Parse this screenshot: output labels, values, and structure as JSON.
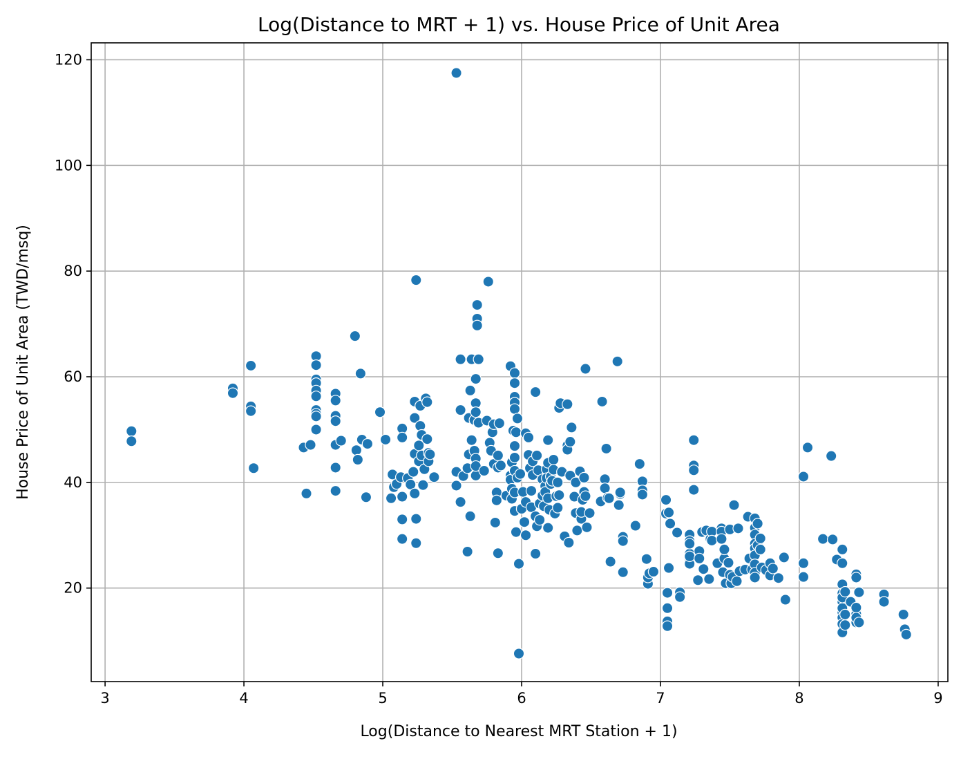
{
  "chart_data": {
    "type": "scatter",
    "title": "Log(Distance to MRT + 1) vs. House Price of Unit Area",
    "xlabel": "Log(Distance to Nearest MRT Station + 1)",
    "ylabel": "House Price of Unit Area (TWD/msq)",
    "xlim": [
      2.9,
      9.07
    ],
    "ylim": [
      2.3,
      123.2
    ],
    "xticks": [
      3,
      4,
      5,
      6,
      7,
      8,
      9
    ],
    "yticks": [
      20,
      40,
      60,
      80,
      100,
      120
    ],
    "xtick_labels": [
      "3",
      "4",
      "5",
      "6",
      "7",
      "8",
      "9"
    ],
    "ytick_labels": [
      "20",
      "40",
      "60",
      "80",
      "100",
      "120"
    ],
    "grid": true,
    "marker_color": "#1f77b4",
    "grid_color": "#b0b0b0",
    "points": [
      [
        3.19,
        49.7
      ],
      [
        3.19,
        47.8
      ],
      [
        3.92,
        57.8
      ],
      [
        3.92,
        56.9
      ],
      [
        4.05,
        62.1
      ],
      [
        4.05,
        54.4
      ],
      [
        4.05,
        53.5
      ],
      [
        4.07,
        42.7
      ],
      [
        4.43,
        46.6
      ],
      [
        4.45,
        37.9
      ],
      [
        4.48,
        47.1
      ],
      [
        4.52,
        63.9
      ],
      [
        4.52,
        62.2
      ],
      [
        4.52,
        59.5
      ],
      [
        4.52,
        58.8
      ],
      [
        4.52,
        57.4
      ],
      [
        4.52,
        56.3
      ],
      [
        4.52,
        53.7
      ],
      [
        4.52,
        53.0
      ],
      [
        4.52,
        52.5
      ],
      [
        4.52,
        50.0
      ],
      [
        4.66,
        56.8
      ],
      [
        4.66,
        55.5
      ],
      [
        4.66,
        52.6
      ],
      [
        4.66,
        51.6
      ],
      [
        4.66,
        47.1
      ],
      [
        4.66,
        42.8
      ],
      [
        4.66,
        38.4
      ],
      [
        4.7,
        47.9
      ],
      [
        4.8,
        67.7
      ],
      [
        4.81,
        46.1
      ],
      [
        4.82,
        44.3
      ],
      [
        4.84,
        60.6
      ],
      [
        4.85,
        48.1
      ],
      [
        4.88,
        37.2
      ],
      [
        4.89,
        47.3
      ],
      [
        4.98,
        53.3
      ],
      [
        5.02,
        48.1
      ],
      [
        5.06,
        37.0
      ],
      [
        5.07,
        41.5
      ],
      [
        5.08,
        39.1
      ],
      [
        5.1,
        39.7
      ],
      [
        5.13,
        41.0
      ],
      [
        5.14,
        50.2
      ],
      [
        5.14,
        48.5
      ],
      [
        5.14,
        37.3
      ],
      [
        5.14,
        33.0
      ],
      [
        5.14,
        29.3
      ],
      [
        5.18,
        40.8
      ],
      [
        5.2,
        39.6
      ],
      [
        5.22,
        42.0
      ],
      [
        5.23,
        55.3
      ],
      [
        5.23,
        52.2
      ],
      [
        5.23,
        45.4
      ],
      [
        5.23,
        37.9
      ],
      [
        5.24,
        78.3
      ],
      [
        5.24,
        33.1
      ],
      [
        5.24,
        28.5
      ],
      [
        5.26,
        47.0
      ],
      [
        5.26,
        44.0
      ],
      [
        5.27,
        50.7
      ],
      [
        5.27,
        54.5
      ],
      [
        5.28,
        49.0
      ],
      [
        5.28,
        45.1
      ],
      [
        5.29,
        39.5
      ],
      [
        5.3,
        42.5
      ],
      [
        5.31,
        55.9
      ],
      [
        5.32,
        48.2
      ],
      [
        5.32,
        55.2
      ],
      [
        5.33,
        45.6
      ],
      [
        5.33,
        44.0
      ],
      [
        5.34,
        45.3
      ],
      [
        5.37,
        41.0
      ],
      [
        5.53,
        117.5
      ],
      [
        5.53,
        42.0
      ],
      [
        5.53,
        39.4
      ],
      [
        5.56,
        63.3
      ],
      [
        5.56,
        53.7
      ],
      [
        5.56,
        36.3
      ],
      [
        5.58,
        41.2
      ],
      [
        5.61,
        26.9
      ],
      [
        5.61,
        42.7
      ],
      [
        5.62,
        45.3
      ],
      [
        5.62,
        52.2
      ],
      [
        5.63,
        33.6
      ],
      [
        5.63,
        57.4
      ],
      [
        5.64,
        63.3
      ],
      [
        5.64,
        48.0
      ],
      [
        5.66,
        51.8
      ],
      [
        5.66,
        46.0
      ],
      [
        5.67,
        59.6
      ],
      [
        5.67,
        55.0
      ],
      [
        5.67,
        53.3
      ],
      [
        5.67,
        44.5
      ],
      [
        5.67,
        41.3
      ],
      [
        5.67,
        43.1
      ],
      [
        5.68,
        73.6
      ],
      [
        5.68,
        71.0
      ],
      [
        5.68,
        69.7
      ],
      [
        5.69,
        63.3
      ],
      [
        5.69,
        51.3
      ],
      [
        5.73,
        42.2
      ],
      [
        5.75,
        51.7
      ],
      [
        5.76,
        78.0
      ],
      [
        5.77,
        47.5
      ],
      [
        5.78,
        46.0
      ],
      [
        5.79,
        49.5
      ],
      [
        5.8,
        51.0
      ],
      [
        5.8,
        43.5
      ],
      [
        5.81,
        32.4
      ],
      [
        5.82,
        38.1
      ],
      [
        5.82,
        36.6
      ],
      [
        5.83,
        26.6
      ],
      [
        5.83,
        45.1
      ],
      [
        5.83,
        42.8
      ],
      [
        5.84,
        51.2
      ],
      [
        5.85,
        43.2
      ],
      [
        5.89,
        37.5
      ],
      [
        5.92,
        62.0
      ],
      [
        5.92,
        41.3
      ],
      [
        5.92,
        40.5
      ],
      [
        5.93,
        38.8
      ],
      [
        5.93,
        36.9
      ],
      [
        5.93,
        43.8
      ],
      [
        5.94,
        49.8
      ],
      [
        5.95,
        60.7
      ],
      [
        5.95,
        58.8
      ],
      [
        5.95,
        56.2
      ],
      [
        5.95,
        55.1
      ],
      [
        5.95,
        53.9
      ],
      [
        5.95,
        46.9
      ],
      [
        5.95,
        44.7
      ],
      [
        5.95,
        42.2
      ],
      [
        5.95,
        38.1
      ],
      [
        5.95,
        34.6
      ],
      [
        5.96,
        30.6
      ],
      [
        5.96,
        49.5
      ],
      [
        5.97,
        52.1
      ],
      [
        5.97,
        40.9
      ],
      [
        5.98,
        24.6
      ],
      [
        5.98,
        7.6
      ],
      [
        5.99,
        41.6
      ],
      [
        6.0,
        35.0
      ],
      [
        6.01,
        38.2
      ],
      [
        6.02,
        32.5
      ],
      [
        6.03,
        30.0
      ],
      [
        6.03,
        36.3
      ],
      [
        6.03,
        49.3
      ],
      [
        6.05,
        48.5
      ],
      [
        6.05,
        45.2
      ],
      [
        6.06,
        42.7
      ],
      [
        6.07,
        35.3
      ],
      [
        6.07,
        38.4
      ],
      [
        6.08,
        41.4
      ],
      [
        6.08,
        44.0
      ],
      [
        6.1,
        57.1
      ],
      [
        6.1,
        33.6
      ],
      [
        6.1,
        26.5
      ],
      [
        6.11,
        31.7
      ],
      [
        6.11,
        45.1
      ],
      [
        6.12,
        42.3
      ],
      [
        6.13,
        36.0
      ],
      [
        6.13,
        32.9
      ],
      [
        6.15,
        40.6
      ],
      [
        6.15,
        37.5
      ],
      [
        6.16,
        35.5
      ],
      [
        6.17,
        39.3
      ],
      [
        6.17,
        38.2
      ],
      [
        6.18,
        42.5
      ],
      [
        6.18,
        40.8
      ],
      [
        6.19,
        48.0
      ],
      [
        6.19,
        43.7
      ],
      [
        6.19,
        37.0
      ],
      [
        6.19,
        31.4
      ],
      [
        6.2,
        34.8
      ],
      [
        6.21,
        41.1
      ],
      [
        6.21,
        39.7
      ],
      [
        6.22,
        40.3
      ],
      [
        6.23,
        44.3
      ],
      [
        6.23,
        42.4
      ],
      [
        6.24,
        34.1
      ],
      [
        6.25,
        37.4
      ],
      [
        6.26,
        35.2
      ],
      [
        6.26,
        40.0
      ],
      [
        6.27,
        37.6
      ],
      [
        6.27,
        54.1
      ],
      [
        6.28,
        55.0
      ],
      [
        6.29,
        42.0
      ],
      [
        6.31,
        29.8
      ],
      [
        6.33,
        54.8
      ],
      [
        6.33,
        47.0
      ],
      [
        6.33,
        46.2
      ],
      [
        6.34,
        28.6
      ],
      [
        6.35,
        41.3
      ],
      [
        6.35,
        47.7
      ],
      [
        6.36,
        50.4
      ],
      [
        6.38,
        37.3
      ],
      [
        6.39,
        40.0
      ],
      [
        6.39,
        34.2
      ],
      [
        6.4,
        30.9
      ],
      [
        6.42,
        42.1
      ],
      [
        6.43,
        33.1
      ],
      [
        6.43,
        34.4
      ],
      [
        6.44,
        36.7
      ],
      [
        6.45,
        40.9
      ],
      [
        6.45,
        38.2
      ],
      [
        6.46,
        61.5
      ],
      [
        6.46,
        37.4
      ],
      [
        6.47,
        31.5
      ],
      [
        6.49,
        34.2
      ],
      [
        6.57,
        36.4
      ],
      [
        6.58,
        55.3
      ],
      [
        6.6,
        40.6
      ],
      [
        6.6,
        38.9
      ],
      [
        6.61,
        46.4
      ],
      [
        6.62,
        37.1
      ],
      [
        6.63,
        37.0
      ],
      [
        6.64,
        25.0
      ],
      [
        6.69,
        62.9
      ],
      [
        6.7,
        35.7
      ],
      [
        6.71,
        37.8
      ],
      [
        6.71,
        38.1
      ],
      [
        6.73,
        29.7
      ],
      [
        6.73,
        28.9
      ],
      [
        6.73,
        23.0
      ],
      [
        6.82,
        31.8
      ],
      [
        6.85,
        43.5
      ],
      [
        6.87,
        40.2
      ],
      [
        6.87,
        38.5
      ],
      [
        6.87,
        37.7
      ],
      [
        6.9,
        25.5
      ],
      [
        6.91,
        20.8
      ],
      [
        6.91,
        22.0
      ],
      [
        6.92,
        22.8
      ],
      [
        6.95,
        23.1
      ],
      [
        7.04,
        36.7
      ],
      [
        7.04,
        34.1
      ],
      [
        7.05,
        19.1
      ],
      [
        7.05,
        16.2
      ],
      [
        7.05,
        13.7
      ],
      [
        7.05,
        12.8
      ],
      [
        7.06,
        34.3
      ],
      [
        7.06,
        23.8
      ],
      [
        7.07,
        32.2
      ],
      [
        7.12,
        30.5
      ],
      [
        7.14,
        19.2
      ],
      [
        7.14,
        18.3
      ],
      [
        7.21,
        30.1
      ],
      [
        7.21,
        28.9
      ],
      [
        7.21,
        26.5
      ],
      [
        7.21,
        25.5
      ],
      [
        7.21,
        24.6
      ],
      [
        7.21,
        26.0
      ],
      [
        7.21,
        28.4
      ],
      [
        7.24,
        48.0
      ],
      [
        7.24,
        43.2
      ],
      [
        7.24,
        42.3
      ],
      [
        7.24,
        38.6
      ],
      [
        7.27,
        21.5
      ],
      [
        7.28,
        27.0
      ],
      [
        7.28,
        25.6
      ],
      [
        7.3,
        30.6
      ],
      [
        7.31,
        23.6
      ],
      [
        7.33,
        30.9
      ],
      [
        7.35,
        21.7
      ],
      [
        7.36,
        29.3
      ],
      [
        7.37,
        30.7
      ],
      [
        7.37,
        29.0
      ],
      [
        7.41,
        24.7
      ],
      [
        7.44,
        31.3
      ],
      [
        7.44,
        30.7
      ],
      [
        7.44,
        29.3
      ],
      [
        7.45,
        23.0
      ],
      [
        7.46,
        25.6
      ],
      [
        7.46,
        27.3
      ],
      [
        7.47,
        20.9
      ],
      [
        7.49,
        24.8
      ],
      [
        7.5,
        31.1
      ],
      [
        7.5,
        22.5
      ],
      [
        7.51,
        20.9
      ],
      [
        7.52,
        22.1
      ],
      [
        7.53,
        35.7
      ],
      [
        7.55,
        21.3
      ],
      [
        7.56,
        31.3
      ],
      [
        7.57,
        23.2
      ],
      [
        7.61,
        23.5
      ],
      [
        7.63,
        33.5
      ],
      [
        7.64,
        25.6
      ],
      [
        7.66,
        23.5
      ],
      [
        7.68,
        33.2
      ],
      [
        7.68,
        31.4
      ],
      [
        7.68,
        30.1
      ],
      [
        7.68,
        28.4
      ],
      [
        7.68,
        27.5
      ],
      [
        7.68,
        26.2
      ],
      [
        7.68,
        24.5
      ],
      [
        7.68,
        22.9
      ],
      [
        7.68,
        22.0
      ],
      [
        7.7,
        32.2
      ],
      [
        7.7,
        28.1
      ],
      [
        7.72,
        29.4
      ],
      [
        7.72,
        27.3
      ],
      [
        7.73,
        23.9
      ],
      [
        7.76,
        23.4
      ],
      [
        7.79,
        24.7
      ],
      [
        7.79,
        22.4
      ],
      [
        7.81,
        23.7
      ],
      [
        7.85,
        21.9
      ],
      [
        7.89,
        25.8
      ],
      [
        7.9,
        17.8
      ],
      [
        8.03,
        41.1
      ],
      [
        8.03,
        24.7
      ],
      [
        8.03,
        22.1
      ],
      [
        8.06,
        46.6
      ],
      [
        8.17,
        29.3
      ],
      [
        8.23,
        45.0
      ],
      [
        8.24,
        29.2
      ],
      [
        8.27,
        25.4
      ],
      [
        8.31,
        27.3
      ],
      [
        8.31,
        24.7
      ],
      [
        8.31,
        20.7
      ],
      [
        8.31,
        19.0
      ],
      [
        8.31,
        17.4
      ],
      [
        8.31,
        15.4
      ],
      [
        8.31,
        14.4
      ],
      [
        8.31,
        13.2
      ],
      [
        8.31,
        11.6
      ],
      [
        8.31,
        18.2
      ],
      [
        8.31,
        16.2
      ],
      [
        8.33,
        19.3
      ],
      [
        8.33,
        15.0
      ],
      [
        8.33,
        13.0
      ],
      [
        8.37,
        17.4
      ],
      [
        8.41,
        22.6
      ],
      [
        8.41,
        22.0
      ],
      [
        8.41,
        15.7
      ],
      [
        8.41,
        15.1
      ],
      [
        8.41,
        13.5
      ],
      [
        8.41,
        16.3
      ],
      [
        8.41,
        14.4
      ],
      [
        8.43,
        19.2
      ],
      [
        8.43,
        13.5
      ],
      [
        8.61,
        18.8
      ],
      [
        8.61,
        17.4
      ],
      [
        8.75,
        15.0
      ],
      [
        8.76,
        12.2
      ],
      [
        8.77,
        11.2
      ]
    ]
  }
}
